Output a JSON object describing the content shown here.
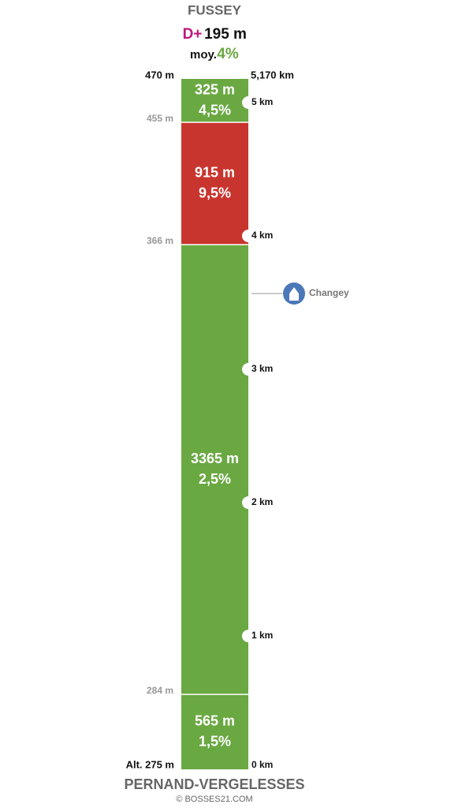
{
  "header": {
    "title": "FUSSEY",
    "gain_label": "D+",
    "gain": "195 m",
    "average_label": "moy.",
    "average": "4%"
  },
  "altitudes": [
    "470 m",
    "455 m",
    "366 m",
    "284 m",
    "Alt. 275 m"
  ],
  "total_distance": "5,170 km",
  "segments": [
    {
      "length": "325 m",
      "grade": "4,5%",
      "color": "#6aa842"
    },
    {
      "length": "915 m",
      "grade": "9,5%",
      "color": "#c8352e"
    },
    {
      "length": "3365 m",
      "grade": "2,5%",
      "color": "#6aa842"
    },
    {
      "length": "565 m",
      "grade": "1,5%",
      "color": "#6aa842"
    }
  ],
  "km_markers": [
    "5 km",
    "4 km",
    "3 km",
    "2 km",
    "1 km",
    "0 km"
  ],
  "waypoint": {
    "label": "Changey"
  },
  "footer": {
    "start": "PERNAND-VERGELESSES",
    "credit": "© BOSSES21.COM"
  }
}
